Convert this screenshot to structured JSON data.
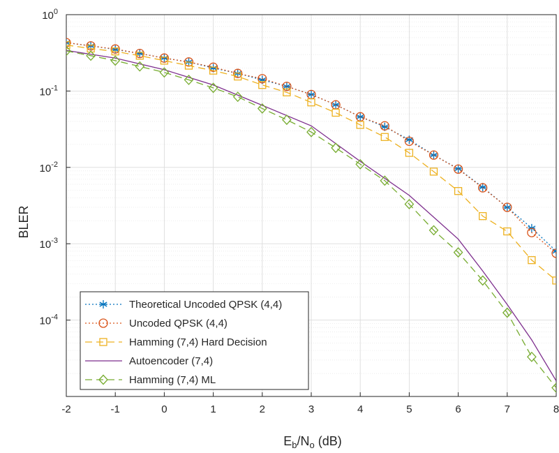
{
  "chart_data": {
    "type": "line",
    "title": "",
    "xlabel": {
      "main": "E",
      "sub1": "b",
      "mid": "/N",
      "sub2": "o",
      "tail": " (dB)"
    },
    "ylabel": "BLER",
    "xlim": [
      -2,
      8
    ],
    "ylim": [
      1e-05,
      1
    ],
    "yscale": "log",
    "grid": true,
    "legend_position": "bottom-left",
    "xticks": [
      -2,
      -1,
      0,
      1,
      2,
      3,
      4,
      5,
      6,
      7,
      8
    ],
    "xtick_labels": [
      "-2",
      "-1",
      "0",
      "1",
      "2",
      "3",
      "4",
      "5",
      "6",
      "7",
      "8"
    ],
    "yticks": [
      {
        "value": 1,
        "base": "10",
        "exp": "0"
      },
      {
        "value": 0.1,
        "base": "10",
        "exp": "-1"
      },
      {
        "value": 0.01,
        "base": "10",
        "exp": "-2"
      },
      {
        "value": 0.001,
        "base": "10",
        "exp": "-3"
      },
      {
        "value": 0.0001,
        "base": "10",
        "exp": "-4"
      }
    ],
    "series": [
      {
        "name": "Theoretical Uncoded QPSK (4,4)",
        "color": "#0072BD",
        "dash": "2,3",
        "marker": "asterisk",
        "x": [
          -2,
          -1.5,
          -1,
          -0.5,
          0,
          0.5,
          1,
          1.5,
          2,
          2.5,
          3,
          3.5,
          4,
          4.5,
          5,
          5.5,
          6,
          6.5,
          7,
          7.5,
          8
        ],
        "y": [
          0.43,
          0.39,
          0.35,
          0.31,
          0.27,
          0.24,
          0.2,
          0.17,
          0.14,
          0.115,
          0.09,
          0.066,
          0.046,
          0.034,
          0.023,
          0.0145,
          0.0096,
          0.0055,
          0.003,
          0.0016,
          0.0008
        ]
      },
      {
        "name": "Uncoded QPSK (4,4)",
        "color": "#D95319",
        "dash": "2,3",
        "marker": "circle",
        "x": [
          -2,
          -1.5,
          -1,
          -0.5,
          0,
          0.5,
          1,
          1.5,
          2,
          2.5,
          3,
          3.5,
          4,
          4.5,
          5,
          5.5,
          6,
          6.5,
          7,
          7.5,
          8
        ],
        "y": [
          0.43,
          0.39,
          0.355,
          0.31,
          0.27,
          0.24,
          0.205,
          0.17,
          0.145,
          0.115,
          0.09,
          0.066,
          0.046,
          0.035,
          0.022,
          0.0145,
          0.0095,
          0.0054,
          0.003,
          0.0014,
          0.00075
        ]
      },
      {
        "name": "Hamming (7,4) Hard Decision",
        "color": "#EDB120",
        "dash": "10,6",
        "marker": "square",
        "x": [
          -2,
          -1.5,
          -1,
          -0.5,
          0,
          0.5,
          1,
          1.5,
          2,
          2.5,
          3,
          3.5,
          4,
          4.5,
          5,
          5.5,
          6,
          6.5,
          7,
          7.5,
          8
        ],
        "y": [
          0.4,
          0.36,
          0.33,
          0.29,
          0.25,
          0.215,
          0.185,
          0.155,
          0.12,
          0.096,
          0.071,
          0.052,
          0.036,
          0.025,
          0.0155,
          0.0088,
          0.0049,
          0.0023,
          0.00145,
          0.00061,
          0.00033
        ]
      },
      {
        "name": "Autoencoder (7,4)",
        "color": "#7E2F8E",
        "dash": "",
        "marker": "none",
        "x": [
          -2,
          -1,
          0,
          1,
          2,
          3,
          4,
          5,
          6,
          6.5,
          7,
          7.5,
          8
        ],
        "y": [
          0.34,
          0.27,
          0.19,
          0.12,
          0.065,
          0.035,
          0.012,
          0.0043,
          0.00115,
          0.00044,
          0.00016,
          5.5e-05,
          1.6e-05
        ]
      },
      {
        "name": "Hamming (7,4) ML",
        "color": "#77AC30",
        "dash": "10,6",
        "marker": "diamond",
        "x": [
          -2,
          -1.5,
          -1,
          -0.5,
          0,
          0.5,
          1,
          1.5,
          2,
          2.5,
          3,
          3.5,
          4,
          4.5,
          5,
          5.5,
          6,
          6.5,
          7,
          7.5,
          8
        ],
        "y": [
          0.335,
          0.29,
          0.25,
          0.21,
          0.175,
          0.14,
          0.11,
          0.084,
          0.059,
          0.042,
          0.029,
          0.018,
          0.011,
          0.0067,
          0.0033,
          0.0015,
          0.00077,
          0.00033,
          0.000125,
          3.3e-05,
          1.3e-05
        ]
      }
    ]
  }
}
